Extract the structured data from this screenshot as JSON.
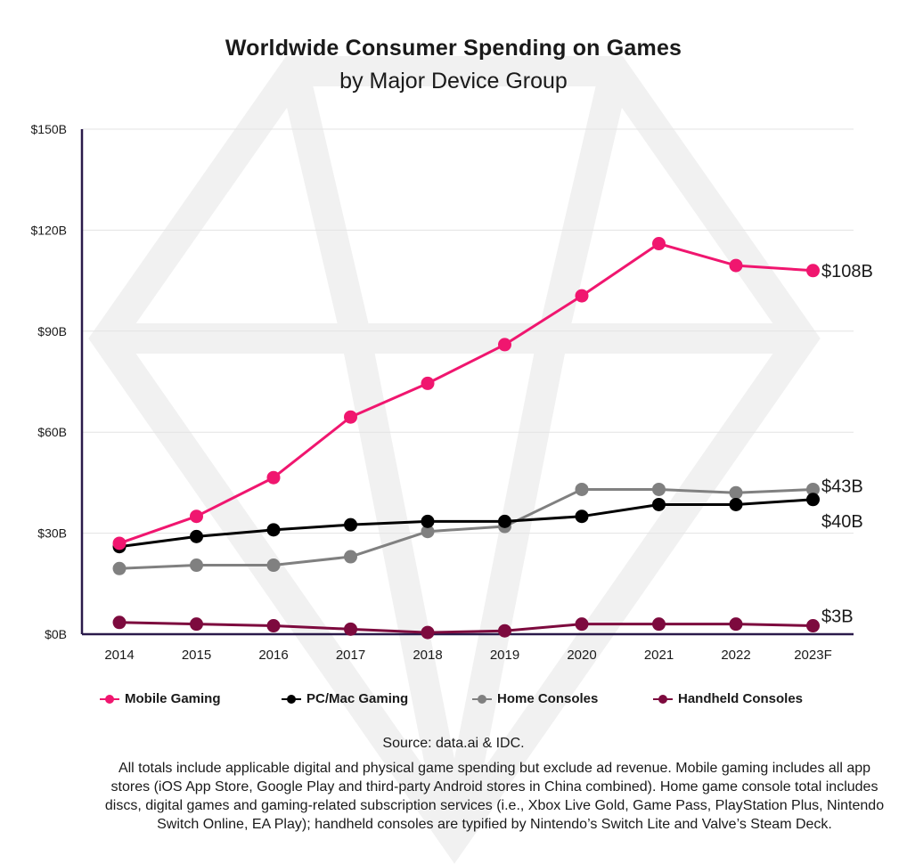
{
  "header": {
    "title": "Worldwide Consumer Spending on Games",
    "subtitle": "by Major Device Group"
  },
  "chart_data": {
    "type": "line",
    "title": "Worldwide Consumer Spending on Games",
    "subtitle": "by Major Device Group",
    "categories": [
      "2014",
      "2015",
      "2016",
      "2017",
      "2018",
      "2019",
      "2020",
      "2021",
      "2022",
      "2023F"
    ],
    "ylim": [
      0,
      150
    ],
    "yticks": [
      0,
      30,
      60,
      90,
      120,
      150
    ],
    "ytick_labels": [
      "$0B",
      "$30B",
      "$60B",
      "$90B",
      "$120B",
      "$150B"
    ],
    "grid": true,
    "legend_position": "bottom",
    "series": [
      {
        "name": "Mobile Gaming",
        "color": "#f0166f",
        "values": [
          27,
          35,
          46.5,
          64.5,
          74.5,
          86,
          100.5,
          116,
          109.5,
          108
        ],
        "end_label": "$108B"
      },
      {
        "name": "PC/Mac Gaming",
        "color": "#000000",
        "values": [
          26,
          29,
          31,
          32.5,
          33.5,
          33.5,
          35,
          38.5,
          38.5,
          40
        ],
        "end_label": "$40B"
      },
      {
        "name": "Home Consoles",
        "color": "#808080",
        "values": [
          19.5,
          20.5,
          20.5,
          23,
          30.5,
          32,
          43,
          43,
          42,
          43
        ],
        "end_label": "$43B"
      },
      {
        "name": "Handheld Consoles",
        "color": "#7d0a3e",
        "values": [
          3.5,
          3,
          2.5,
          1.5,
          0.5,
          1,
          3,
          3,
          3,
          2.5
        ],
        "end_label": "$3B"
      }
    ]
  },
  "legend": {
    "items": [
      {
        "label": "Mobile Gaming",
        "color": "#f0166f"
      },
      {
        "label": "PC/Mac Gaming",
        "color": "#000000"
      },
      {
        "label": "Home Consoles",
        "color": "#808080"
      },
      {
        "label": "Handheld Consoles",
        "color": "#7d0a3e"
      }
    ]
  },
  "footer": {
    "source": "Source: data.ai & IDC.",
    "notes": "All totals include applicable digital and physical game spending but exclude ad revenue. Mobile gaming includes all app stores (iOS App Store, Google Play and third-party Android stores in China combined). Home game console total includes discs, digital games and gaming-related subscription services (i.e., Xbox Live Gold, Game Pass, PlayStation Plus, Nintendo Switch Online, EA Play); handheld consoles are typified by Nintendo’s Switch Lite and Valve’s Steam Deck."
  }
}
